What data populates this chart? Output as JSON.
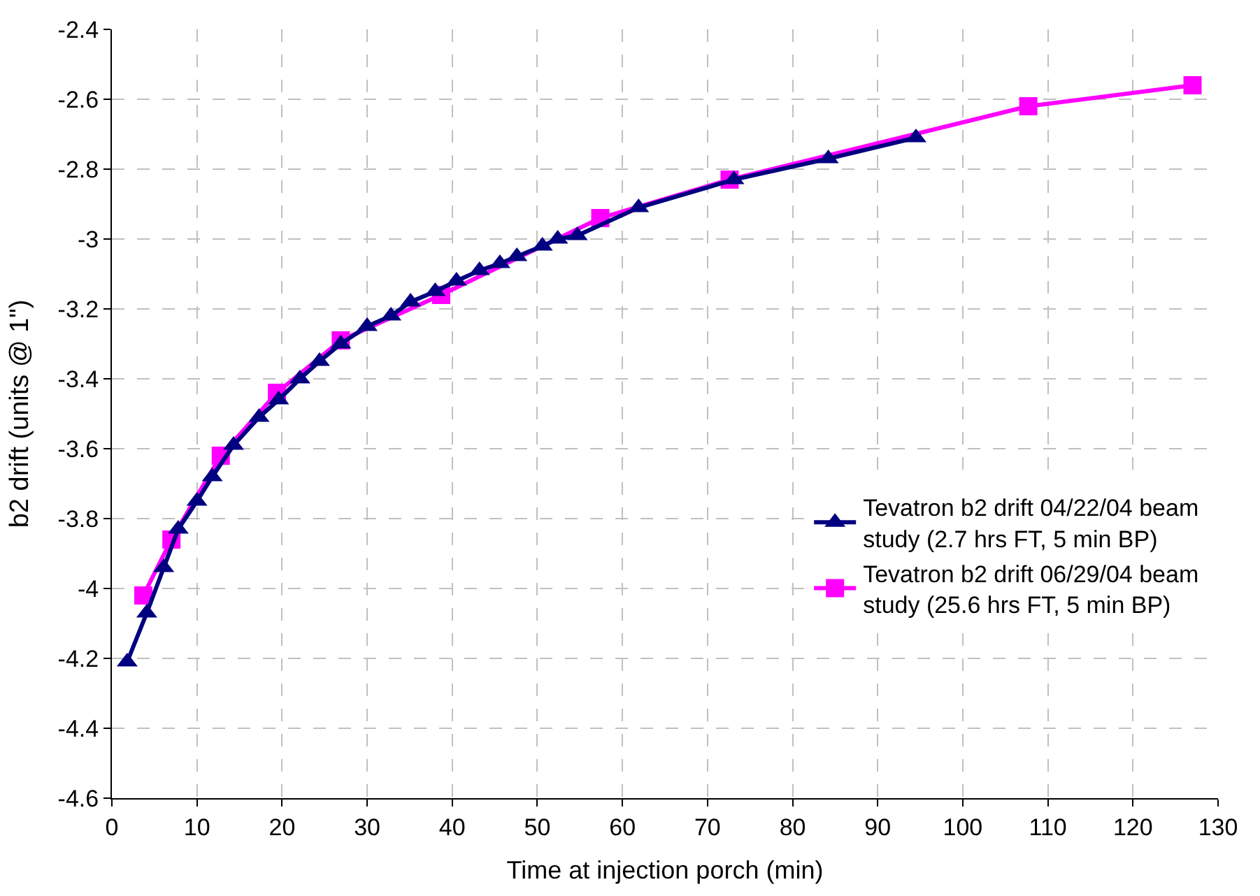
{
  "chart_data": {
    "type": "line",
    "xlabel": "Time at injection porch (min)",
    "ylabel": "b2 drift (units @ 1\")",
    "xlim": [
      0,
      130
    ],
    "xticks": [
      0,
      10,
      20,
      30,
      40,
      50,
      60,
      70,
      80,
      90,
      100,
      110,
      120,
      130
    ],
    "ylim": [
      -4.6,
      -2.4
    ],
    "yticks": [
      -4.6,
      -4.4,
      -4.2,
      -4,
      -3.8,
      -3.6,
      -3.4,
      -3.2,
      -3,
      -2.8,
      -2.6,
      -2.4
    ],
    "grid": true,
    "legend": "bottom right",
    "series": [
      {
        "name": "Tevatron b2 drift 04/22/04 beam study (2.7 hrs FT, 5 min BP)",
        "color": "#000080",
        "marker": "triangle",
        "x": [
          1.8,
          4.1,
          6.1,
          7.8,
          10,
          11.8,
          14.3,
          17.3,
          19.6,
          22.1,
          24.4,
          26.9,
          30,
          32.8,
          35.1,
          38,
          40.5,
          43.2,
          45.6,
          47.6,
          50.6,
          52.4,
          54.7,
          61.9,
          73.1,
          84.2,
          94.5
        ],
        "values": [
          -4.21,
          -4.07,
          -3.94,
          -3.83,
          -3.75,
          -3.68,
          -3.59,
          -3.51,
          -3.46,
          -3.4,
          -3.35,
          -3.3,
          -3.25,
          -3.22,
          -3.18,
          -3.15,
          -3.12,
          -3.09,
          -3.07,
          -3.05,
          -3.02,
          -3.0,
          -2.99,
          -2.91,
          -2.83,
          -2.77,
          -2.71
        ]
      },
      {
        "name": "Tevatron b2 drift 06/29/04 beam study (25.6 hrs FT, 5 min BP)",
        "color": "#ff00ff",
        "marker": "square",
        "x": [
          3.7,
          7,
          12.8,
          19.4,
          26.9,
          38.7,
          57.4,
          72.6,
          107.7,
          127
        ],
        "values": [
          -4.02,
          -3.86,
          -3.62,
          -3.44,
          -3.29,
          -3.16,
          -2.94,
          -2.83,
          -2.62,
          -2.56
        ]
      }
    ]
  }
}
